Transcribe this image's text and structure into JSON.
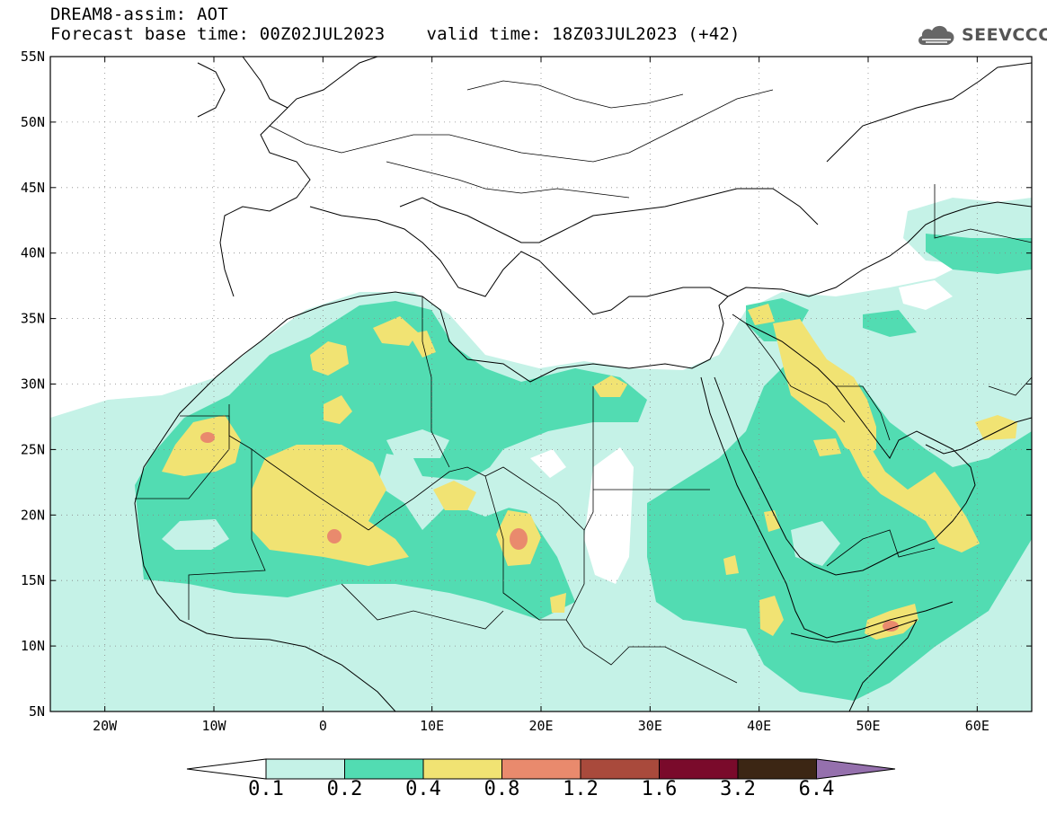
{
  "header": {
    "line1": "DREAM8-assim: AOT",
    "base_time": "Forecast base time: 00Z02JUL2023",
    "valid_time": "valid time: 18Z03JUL2023 (+42)"
  },
  "logo": {
    "icon": "cloud-icon",
    "text": "SEEVCCC"
  },
  "map": {
    "variable": "AOT",
    "projection": "lat-lon",
    "lon_range": [
      -25,
      65
    ],
    "lat_range": [
      5,
      55
    ],
    "lat_ticks": [
      "5N",
      "10N",
      "15N",
      "20N",
      "25N",
      "30N",
      "35N",
      "40N",
      "45N",
      "50N",
      "55N"
    ],
    "lon_ticks": [
      "20W",
      "10W",
      "0",
      "10E",
      "20E",
      "30E",
      "40E",
      "50E",
      "60E"
    ],
    "grid": "dotted",
    "hotspots": [
      {
        "lon": -11,
        "lat": 26,
        "value": 0.9
      },
      {
        "lon": 1,
        "lat": 18.5,
        "value": 0.9
      },
      {
        "lon": 18,
        "lat": 18,
        "value": 1.0
      },
      {
        "lon": 52,
        "lat": 11.5,
        "value": 0.9
      }
    ]
  },
  "colorbar": {
    "labels": [
      "0.1",
      "0.2",
      "0.4",
      "0.8",
      "1.2",
      "1.6",
      "3.2",
      "6.4"
    ],
    "colors": [
      "#c5f2e7",
      "#52dcb2",
      "#f1e373",
      "#e98a6d",
      "#a94a3c",
      "#7a0a2b",
      "#3c2614",
      "#9570ad"
    ],
    "below_color": "#ffffff"
  }
}
